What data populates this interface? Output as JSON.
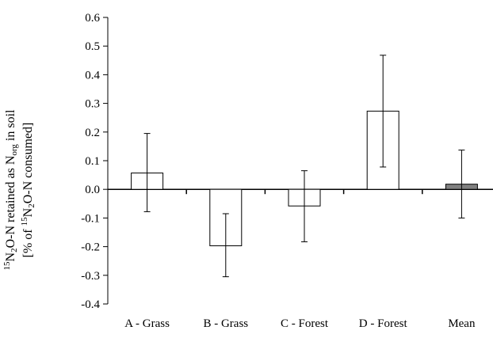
{
  "chart_data": {
    "type": "bar",
    "categories": [
      "A - Grass",
      "B - Grass",
      "C - Forest",
      "D - Forest",
      "Mean"
    ],
    "values": [
      0.057,
      -0.197,
      -0.058,
      0.273,
      0.018
    ],
    "error_low": [
      -0.078,
      -0.305,
      -0.183,
      0.078,
      -0.1
    ],
    "error_high": [
      0.195,
      -0.085,
      0.065,
      0.468,
      0.137
    ],
    "bar_colors": [
      "#ffffff",
      "#ffffff",
      "#ffffff",
      "#ffffff",
      "#808080"
    ],
    "ylim": [
      -0.4,
      0.6
    ],
    "yticks": [
      "-0.4",
      "-0.3",
      "-0.2",
      "-0.1",
      "0.0",
      "0.1",
      "0.2",
      "0.3",
      "0.4",
      "0.5",
      "0.6"
    ],
    "ylabel": {
      "line1": {
        "sup_a": "15",
        "a": "N",
        "sub_a": "2",
        "b": "O-N retained as N",
        "sub_b": "org",
        "c": " in soil"
      },
      "line2": {
        "a": "[% of ",
        "sup_a": "15",
        "b": "N",
        "sub_b": "2",
        "c": "O-N consumed]"
      }
    },
    "xlabel": "",
    "title": "",
    "grid": false,
    "legend": "none"
  }
}
